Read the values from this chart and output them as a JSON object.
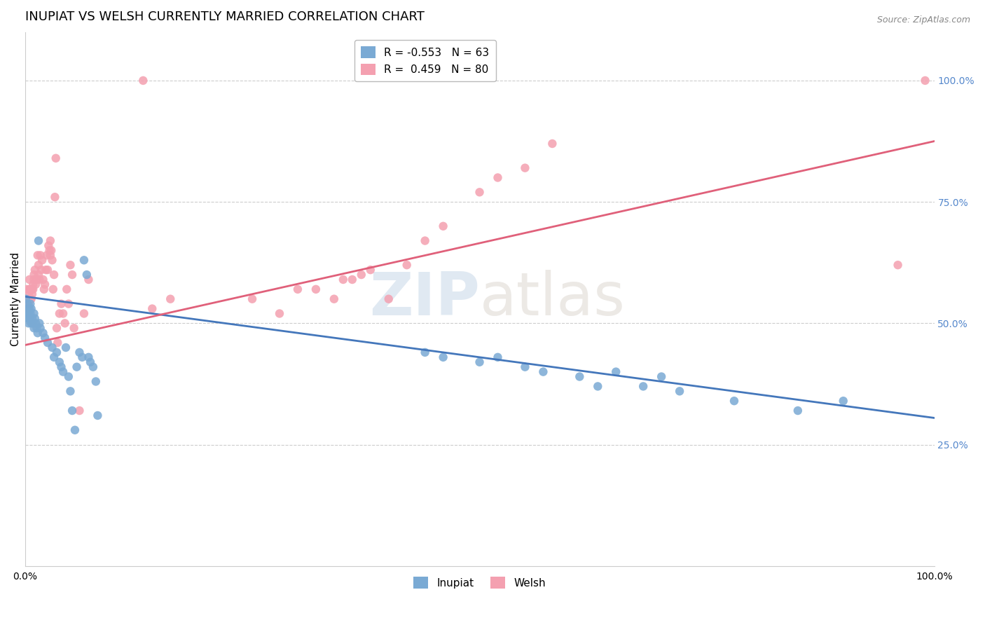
{
  "title": "INUPIAT VS WELSH CURRENTLY MARRIED CORRELATION CHART",
  "source": "Source: ZipAtlas.com",
  "ylabel_text": "Currently Married",
  "watermark_zip": "ZIP",
  "watermark_atlas": "atlas",
  "legend_entries": [
    {
      "label": "R = -0.553   N = 63",
      "color": "#7aaad4"
    },
    {
      "label": "R =  0.459   N = 80",
      "color": "#f4a0b0"
    }
  ],
  "legend_bottom": [
    "Inupiat",
    "Welsh"
  ],
  "inupiat_color": "#7aaad4",
  "welsh_color": "#f4a0b0",
  "inupiat_line_color": "#4477bb",
  "welsh_line_color": "#e0607a",
  "inupiat_scatter": [
    [
      0.001,
      0.55
    ],
    [
      0.002,
      0.53
    ],
    [
      0.002,
      0.52
    ],
    [
      0.003,
      0.54
    ],
    [
      0.003,
      0.51
    ],
    [
      0.004,
      0.52
    ],
    [
      0.004,
      0.5
    ],
    [
      0.005,
      0.53
    ],
    [
      0.005,
      0.51
    ],
    [
      0.006,
      0.54
    ],
    [
      0.006,
      0.52
    ],
    [
      0.007,
      0.53
    ],
    [
      0.007,
      0.5
    ],
    [
      0.008,
      0.51
    ],
    [
      0.009,
      0.5
    ],
    [
      0.01,
      0.52
    ],
    [
      0.01,
      0.49
    ],
    [
      0.011,
      0.51
    ],
    [
      0.012,
      0.5
    ],
    [
      0.013,
      0.49
    ],
    [
      0.014,
      0.48
    ],
    [
      0.015,
      0.67
    ],
    [
      0.016,
      0.5
    ],
    [
      0.017,
      0.49
    ],
    [
      0.02,
      0.48
    ],
    [
      0.022,
      0.47
    ],
    [
      0.025,
      0.46
    ],
    [
      0.03,
      0.45
    ],
    [
      0.032,
      0.43
    ],
    [
      0.035,
      0.44
    ],
    [
      0.038,
      0.42
    ],
    [
      0.04,
      0.41
    ],
    [
      0.042,
      0.4
    ],
    [
      0.045,
      0.45
    ],
    [
      0.048,
      0.39
    ],
    [
      0.05,
      0.36
    ],
    [
      0.052,
      0.32
    ],
    [
      0.055,
      0.28
    ],
    [
      0.057,
      0.41
    ],
    [
      0.06,
      0.44
    ],
    [
      0.063,
      0.43
    ],
    [
      0.065,
      0.63
    ],
    [
      0.068,
      0.6
    ],
    [
      0.07,
      0.43
    ],
    [
      0.072,
      0.42
    ],
    [
      0.075,
      0.41
    ],
    [
      0.078,
      0.38
    ],
    [
      0.08,
      0.31
    ],
    [
      0.44,
      0.44
    ],
    [
      0.46,
      0.43
    ],
    [
      0.5,
      0.42
    ],
    [
      0.52,
      0.43
    ],
    [
      0.55,
      0.41
    ],
    [
      0.57,
      0.4
    ],
    [
      0.61,
      0.39
    ],
    [
      0.63,
      0.37
    ],
    [
      0.65,
      0.4
    ],
    [
      0.68,
      0.37
    ],
    [
      0.7,
      0.39
    ],
    [
      0.72,
      0.36
    ],
    [
      0.78,
      0.34
    ],
    [
      0.85,
      0.32
    ],
    [
      0.9,
      0.34
    ]
  ],
  "welsh_scatter": [
    [
      0.001,
      0.54
    ],
    [
      0.002,
      0.57
    ],
    [
      0.003,
      0.55
    ],
    [
      0.003,
      0.53
    ],
    [
      0.004,
      0.56
    ],
    [
      0.004,
      0.54
    ],
    [
      0.005,
      0.57
    ],
    [
      0.005,
      0.59
    ],
    [
      0.006,
      0.57
    ],
    [
      0.006,
      0.55
    ],
    [
      0.007,
      0.55
    ],
    [
      0.007,
      0.57
    ],
    [
      0.008,
      0.57
    ],
    [
      0.008,
      0.56
    ],
    [
      0.009,
      0.58
    ],
    [
      0.009,
      0.57
    ],
    [
      0.01,
      0.59
    ],
    [
      0.01,
      0.6
    ],
    [
      0.011,
      0.61
    ],
    [
      0.012,
      0.58
    ],
    [
      0.013,
      0.59
    ],
    [
      0.014,
      0.64
    ],
    [
      0.015,
      0.62
    ],
    [
      0.015,
      0.6
    ],
    [
      0.016,
      0.59
    ],
    [
      0.017,
      0.64
    ],
    [
      0.018,
      0.61
    ],
    [
      0.019,
      0.63
    ],
    [
      0.02,
      0.59
    ],
    [
      0.021,
      0.57
    ],
    [
      0.022,
      0.58
    ],
    [
      0.023,
      0.61
    ],
    [
      0.024,
      0.64
    ],
    [
      0.025,
      0.61
    ],
    [
      0.026,
      0.66
    ],
    [
      0.027,
      0.65
    ],
    [
      0.028,
      0.67
    ],
    [
      0.028,
      0.64
    ],
    [
      0.029,
      0.65
    ],
    [
      0.03,
      0.63
    ],
    [
      0.031,
      0.57
    ],
    [
      0.032,
      0.6
    ],
    [
      0.033,
      0.76
    ],
    [
      0.034,
      0.84
    ],
    [
      0.035,
      0.49
    ],
    [
      0.036,
      0.46
    ],
    [
      0.038,
      0.52
    ],
    [
      0.04,
      0.54
    ],
    [
      0.042,
      0.52
    ],
    [
      0.044,
      0.5
    ],
    [
      0.046,
      0.57
    ],
    [
      0.048,
      0.54
    ],
    [
      0.05,
      0.62
    ],
    [
      0.052,
      0.6
    ],
    [
      0.054,
      0.49
    ],
    [
      0.06,
      0.32
    ],
    [
      0.065,
      0.52
    ],
    [
      0.07,
      0.59
    ],
    [
      0.13,
      1.0
    ],
    [
      0.14,
      0.53
    ],
    [
      0.16,
      0.55
    ],
    [
      0.25,
      0.55
    ],
    [
      0.28,
      0.52
    ],
    [
      0.3,
      0.57
    ],
    [
      0.32,
      0.57
    ],
    [
      0.34,
      0.55
    ],
    [
      0.35,
      0.59
    ],
    [
      0.36,
      0.59
    ],
    [
      0.37,
      0.6
    ],
    [
      0.38,
      0.61
    ],
    [
      0.4,
      0.55
    ],
    [
      0.42,
      0.62
    ],
    [
      0.44,
      0.67
    ],
    [
      0.46,
      0.7
    ],
    [
      0.5,
      0.77
    ],
    [
      0.52,
      0.8
    ],
    [
      0.55,
      0.82
    ],
    [
      0.58,
      0.87
    ],
    [
      0.96,
      0.62
    ],
    [
      0.99,
      1.0
    ]
  ],
  "inupiat_line": {
    "x0": 0.0,
    "y0": 0.555,
    "x1": 1.0,
    "y1": 0.305
  },
  "welsh_line": {
    "x0": 0.0,
    "y0": 0.455,
    "x1": 1.0,
    "y1": 0.875
  },
  "xlim": [
    0.0,
    1.0
  ],
  "ylim": [
    0.0,
    1.1
  ],
  "xtick_positions": [
    0.0,
    0.25,
    0.5,
    0.75,
    1.0
  ],
  "xtick_labels": [
    "0.0%",
    "",
    "",
    "",
    "100.0%"
  ],
  "ytick_positions": [
    0.25,
    0.5,
    0.75,
    1.0
  ],
  "ytick_labels_right": [
    "25.0%",
    "50.0%",
    "75.0%",
    "100.0%"
  ],
  "grid_color": "#cccccc",
  "background_color": "#ffffff",
  "title_fontsize": 13,
  "axis_label_fontsize": 11,
  "tick_fontsize": 10,
  "marker_size": 80,
  "right_tick_color": "#5588cc"
}
